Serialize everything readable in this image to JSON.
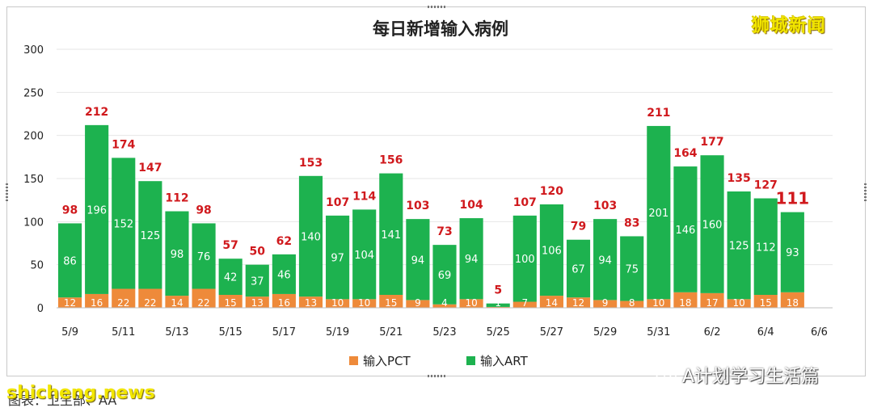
{
  "watermarks": {
    "brand": "狮城新闻",
    "wechat_account": "A计划学习生活篇",
    "site": "shicheng.news",
    "source_note": "图表：卫生部、AA"
  },
  "colors": {
    "pct": "#ee8a3a",
    "art": "#1db24f",
    "total_label": "#d0191d",
    "segment_label": "#ffffff"
  },
  "chart_data": {
    "type": "bar",
    "stacked": true,
    "title": "每日新增输入病例",
    "categories": [
      "5/9",
      "5/10",
      "5/11",
      "5/12",
      "5/13",
      "5/14",
      "5/15",
      "5/16",
      "5/17",
      "5/18",
      "5/19",
      "5/20",
      "5/21",
      "5/22",
      "5/23",
      "5/24",
      "5/25",
      "5/26",
      "5/27",
      "5/28",
      "5/29",
      "5/30",
      "5/31",
      "6/1",
      "6/2",
      "6/3",
      "6/4",
      "6/5",
      "6/6"
    ],
    "x_tick_labels": [
      "5/9",
      "5/11",
      "5/13",
      "5/15",
      "5/17",
      "5/19",
      "5/21",
      "5/23",
      "5/25",
      "5/27",
      "5/29",
      "5/31",
      "6/2",
      "6/4",
      "6/6"
    ],
    "series": [
      {
        "name": "输入PCT",
        "color": "#ee8a3a",
        "values": [
          12,
          16,
          22,
          22,
          14,
          22,
          15,
          13,
          16,
          13,
          10,
          10,
          15,
          9,
          4,
          10,
          1,
          7,
          14,
          12,
          9,
          8,
          10,
          18,
          17,
          10,
          15,
          18,
          null
        ]
      },
      {
        "name": "输入ART",
        "color": "#1db24f",
        "values": [
          86,
          196,
          152,
          125,
          98,
          76,
          42,
          37,
          46,
          140,
          97,
          104,
          141,
          94,
          69,
          94,
          4,
          100,
          106,
          67,
          94,
          75,
          201,
          146,
          160,
          125,
          112,
          93,
          null
        ]
      }
    ],
    "totals": [
      98,
      212,
      174,
      147,
      112,
      98,
      57,
      50,
      62,
      153,
      107,
      114,
      156,
      103,
      73,
      104,
      5,
      107,
      120,
      79,
      103,
      83,
      211,
      164,
      177,
      135,
      127,
      111,
      null
    ],
    "ylim": [
      0,
      300
    ],
    "yticks": [
      0,
      50,
      100,
      150,
      200,
      250,
      300
    ],
    "grid": true,
    "legend_position": "bottom"
  }
}
